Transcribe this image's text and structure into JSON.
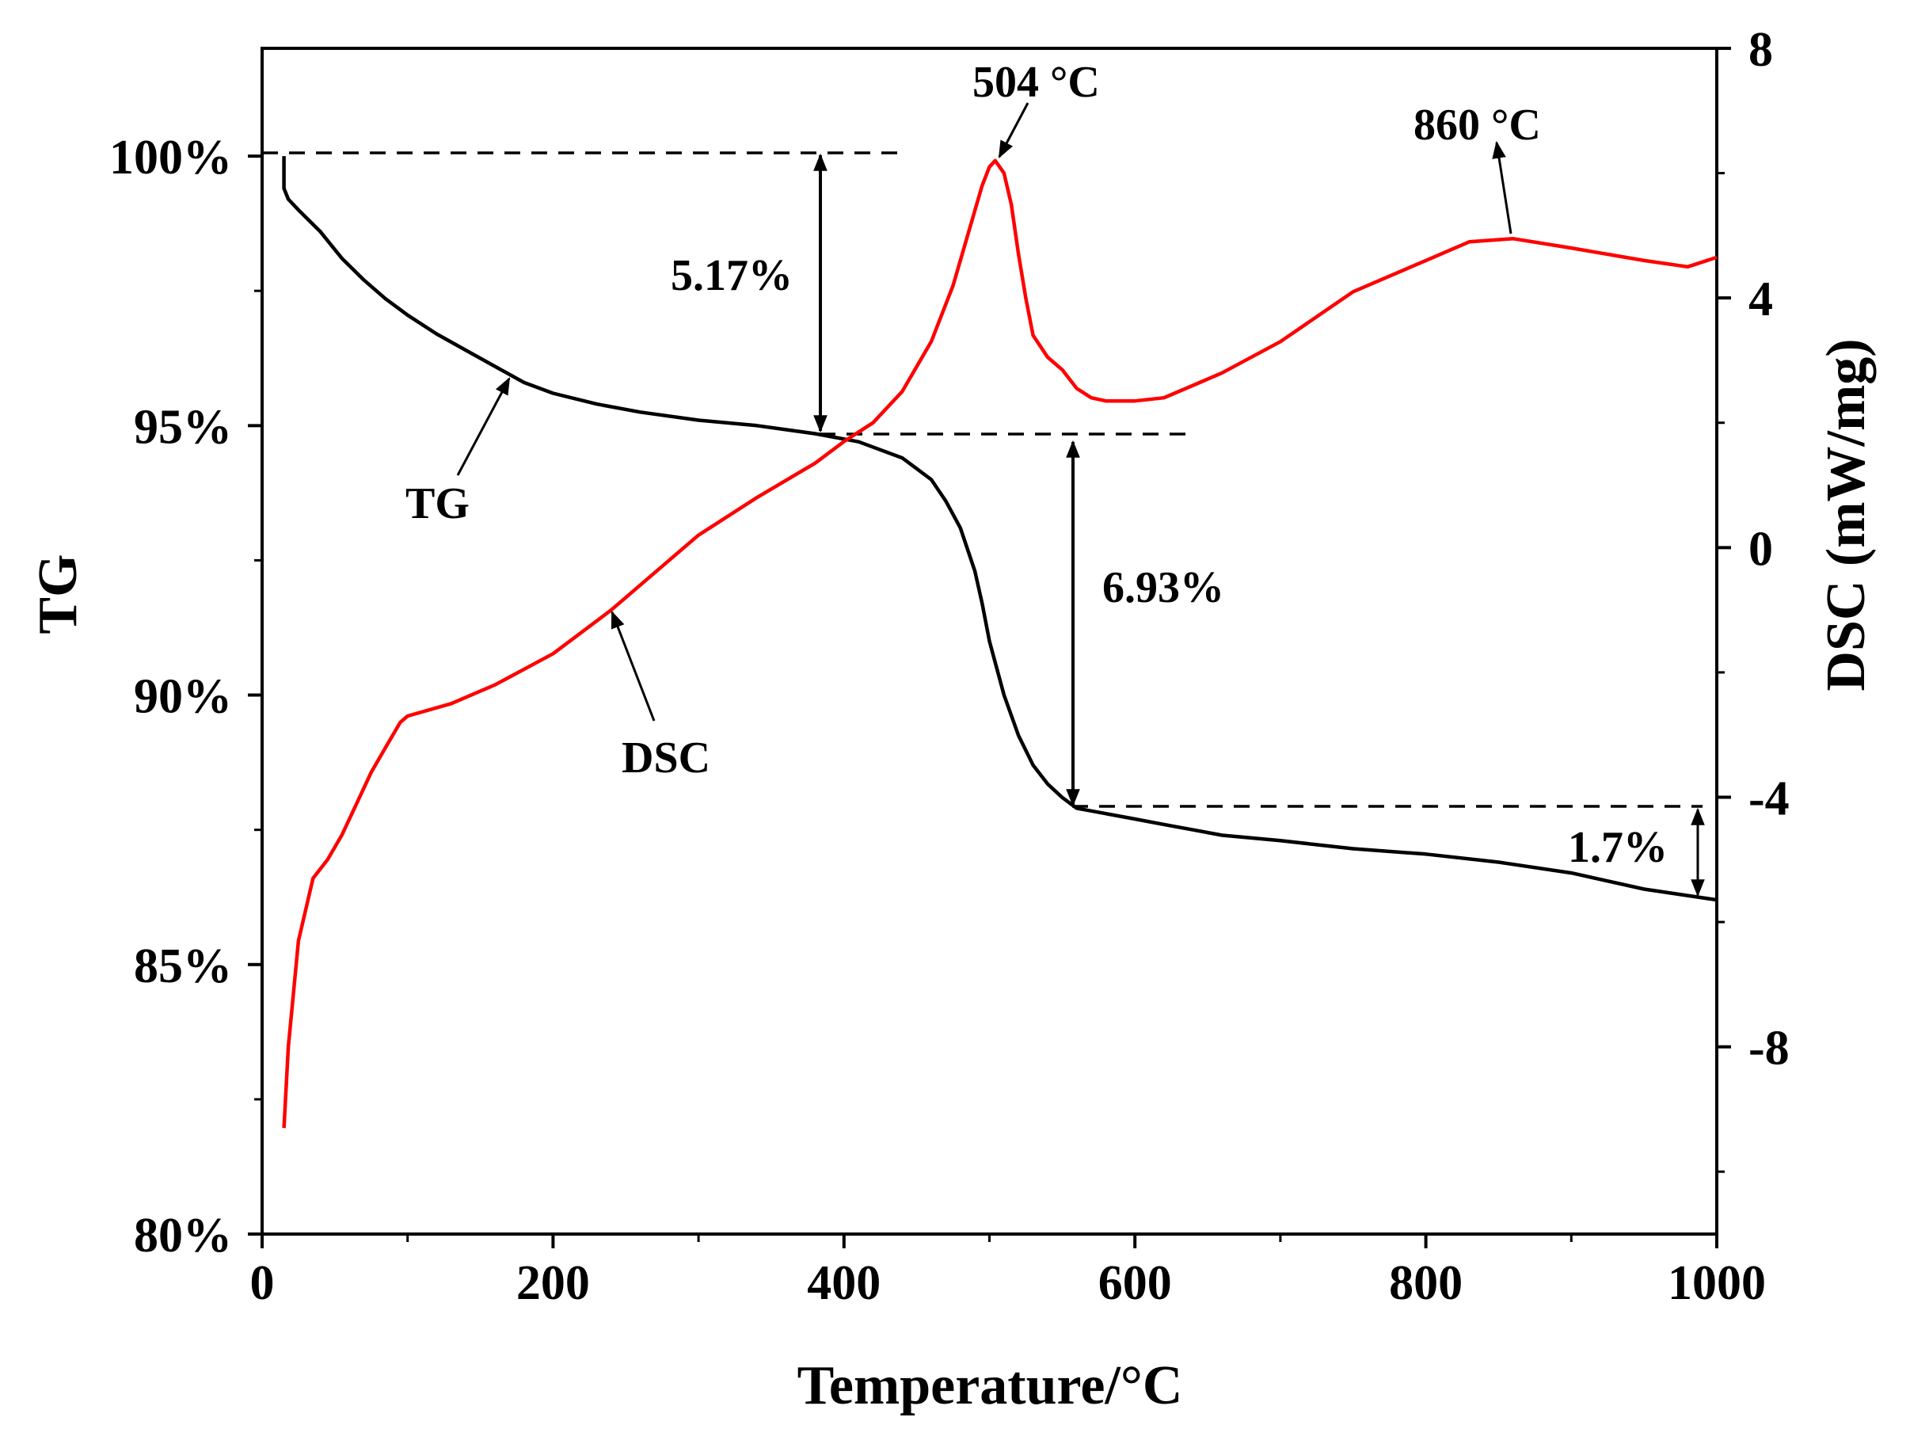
{
  "chart_data": {
    "type": "line",
    "title": "",
    "xlabel": "Temperature/°C",
    "ylabel_left": "TG",
    "ylabel_right": "DSC (mW/mg)",
    "xlim": [
      0,
      1000
    ],
    "ylim_left": [
      80,
      102
    ],
    "ylim_right": [
      -11,
      8
    ],
    "x_ticks": [
      0,
      200,
      400,
      600,
      800,
      1000
    ],
    "x_tick_labels": [
      "0",
      "200",
      "400",
      "600",
      "800",
      "1000"
    ],
    "left_ticks": [
      80,
      85,
      90,
      95,
      100
    ],
    "left_tick_labels": [
      "80%",
      "85%",
      "90%",
      "95%",
      "100%"
    ],
    "right_ticks": [
      -8,
      -4,
      0,
      4,
      8
    ],
    "right_tick_labels": [
      "-8",
      "-4",
      "0",
      "4",
      "8"
    ],
    "grid": false,
    "series": [
      {
        "name": "TG",
        "axis": "left",
        "color": "#000000",
        "x": [
          15,
          15,
          18,
          25,
          40,
          55,
          70,
          85,
          100,
          120,
          140,
          160,
          180,
          200,
          230,
          260,
          300,
          340,
          380,
          410,
          440,
          460,
          470,
          480,
          490,
          495,
          500,
          510,
          520,
          530,
          540,
          550,
          560,
          580,
          600,
          620,
          640,
          660,
          700,
          750,
          800,
          850,
          900,
          950,
          1000
        ],
        "y": [
          100.0,
          99.4,
          99.2,
          99.0,
          98.6,
          98.1,
          97.7,
          97.35,
          97.05,
          96.7,
          96.4,
          96.1,
          95.8,
          95.6,
          95.4,
          95.25,
          95.1,
          95.0,
          94.85,
          94.7,
          94.4,
          94.0,
          93.6,
          93.1,
          92.3,
          91.7,
          91.0,
          90.0,
          89.25,
          88.7,
          88.35,
          88.1,
          87.9,
          87.8,
          87.7,
          87.6,
          87.5,
          87.4,
          87.3,
          87.15,
          87.05,
          86.9,
          86.7,
          86.4,
          86.2
        ]
      },
      {
        "name": "DSC",
        "axis": "right",
        "color": "#ff0000",
        "x": [
          15,
          18,
          25,
          35,
          45,
          55,
          65,
          75,
          85,
          95,
          100,
          130,
          160,
          200,
          240,
          270,
          300,
          340,
          380,
          400,
          420,
          440,
          460,
          475,
          485,
          495,
          500,
          504,
          510,
          515,
          520,
          525,
          530,
          540,
          550,
          560,
          570,
          580,
          600,
          620,
          640,
          660,
          700,
          750,
          800,
          830,
          860,
          900,
          950,
          980,
          1000
        ],
        "y": [
          -9.3,
          -8.0,
          -6.3,
          -5.3,
          -5.0,
          -4.6,
          -4.1,
          -3.6,
          -3.2,
          -2.8,
          -2.7,
          -2.5,
          -2.2,
          -1.7,
          -1.0,
          -0.4,
          0.2,
          0.8,
          1.35,
          1.7,
          2.0,
          2.5,
          3.3,
          4.2,
          5.0,
          5.8,
          6.1,
          6.2,
          6.0,
          5.5,
          4.7,
          4.0,
          3.4,
          3.05,
          2.85,
          2.55,
          2.4,
          2.35,
          2.35,
          2.4,
          2.6,
          2.8,
          3.3,
          4.1,
          4.6,
          4.9,
          4.95,
          4.8,
          4.6,
          4.5,
          4.65
        ]
      }
    ],
    "annotations": [
      {
        "id": "tg",
        "text": "TG"
      },
      {
        "id": "dsc",
        "text": "DSC"
      },
      {
        "id": "peak504",
        "text": "504 °C"
      },
      {
        "id": "peak860",
        "text": "860 °C"
      },
      {
        "id": "loss1",
        "text": "5.17%"
      },
      {
        "id": "loss2",
        "text": "6.93%"
      },
      {
        "id": "loss3",
        "text": "1.7%"
      }
    ]
  }
}
